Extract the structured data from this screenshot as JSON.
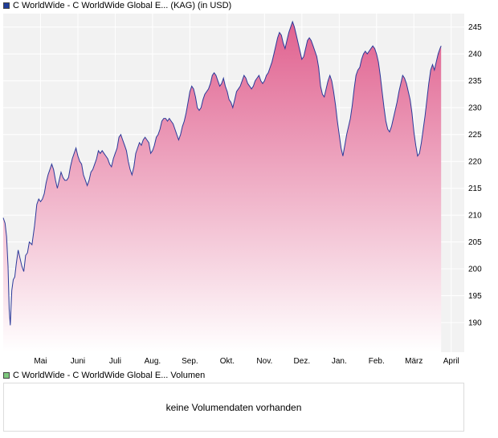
{
  "colors": {
    "price_swatch": "#1f3d99",
    "volume_swatch": "#7fc97f",
    "line": "#2b3a9a",
    "fill_top": "#e0618f",
    "fill_bottom": "#ffffff",
    "grid": "#e6e6e6",
    "plot_bg": "#f2f2f2"
  },
  "legend": {
    "price": "C WorldWide - C WorldWide Global E... (KAG) (in USD)",
    "volume": "C WorldWide - C WorldWide Global E... Volumen"
  },
  "volume_panel": {
    "message": "keine Volumendaten vorhanden"
  },
  "chart_data": {
    "type": "area",
    "series": [
      {
        "name": "C WorldWide - C WorldWide Global E... (KAG) (in USD)"
      }
    ],
    "x_ticks": [
      "Mai",
      "Juni",
      "Juli",
      "Aug.",
      "Sep.",
      "Okt.",
      "Nov.",
      "Dez.",
      "Jan.",
      "Feb.",
      "März",
      "April"
    ],
    "y_ticks": [
      190,
      195,
      200,
      205,
      210,
      215,
      220,
      225,
      230,
      235,
      240,
      245
    ],
    "ylim": [
      184.5,
      247.5
    ],
    "y_axis_side": "right",
    "grid": true,
    "x_range": [
      0,
      12.35
    ],
    "points": [
      [
        0.0,
        209.5
      ],
      [
        0.05,
        208.5
      ],
      [
        0.09,
        206.0
      ],
      [
        0.13,
        200.5
      ],
      [
        0.16,
        192.5
      ],
      [
        0.19,
        189.5
      ],
      [
        0.23,
        196.0
      ],
      [
        0.27,
        198.0
      ],
      [
        0.31,
        198.5
      ],
      [
        0.35,
        201.0
      ],
      [
        0.4,
        203.5
      ],
      [
        0.45,
        202.0
      ],
      [
        0.5,
        200.5
      ],
      [
        0.55,
        199.5
      ],
      [
        0.6,
        202.5
      ],
      [
        0.65,
        203.0
      ],
      [
        0.7,
        205.0
      ],
      [
        0.77,
        204.5
      ],
      [
        0.84,
        208.0
      ],
      [
        0.9,
        212.0
      ],
      [
        0.95,
        213.0
      ],
      [
        1.0,
        212.5
      ],
      [
        1.05,
        213.0
      ],
      [
        1.1,
        214.0
      ],
      [
        1.15,
        216.0
      ],
      [
        1.2,
        217.5
      ],
      [
        1.25,
        218.5
      ],
      [
        1.3,
        219.5
      ],
      [
        1.35,
        218.5
      ],
      [
        1.4,
        216.5
      ],
      [
        1.45,
        215.0
      ],
      [
        1.5,
        216.5
      ],
      [
        1.55,
        218.0
      ],
      [
        1.6,
        217.0
      ],
      [
        1.65,
        216.5
      ],
      [
        1.7,
        216.5
      ],
      [
        1.75,
        217.0
      ],
      [
        1.8,
        219.0
      ],
      [
        1.85,
        220.5
      ],
      [
        1.9,
        221.5
      ],
      [
        1.95,
        222.5
      ],
      [
        2.0,
        221.0
      ],
      [
        2.05,
        220.0
      ],
      [
        2.1,
        219.5
      ],
      [
        2.15,
        217.5
      ],
      [
        2.2,
        216.5
      ],
      [
        2.25,
        215.5
      ],
      [
        2.3,
        216.5
      ],
      [
        2.35,
        218.0
      ],
      [
        2.4,
        218.5
      ],
      [
        2.45,
        219.5
      ],
      [
        2.5,
        220.5
      ],
      [
        2.55,
        222.0
      ],
      [
        2.6,
        221.5
      ],
      [
        2.65,
        222.0
      ],
      [
        2.7,
        221.5
      ],
      [
        2.75,
        221.0
      ],
      [
        2.8,
        220.5
      ],
      [
        2.85,
        219.5
      ],
      [
        2.9,
        219.0
      ],
      [
        2.95,
        220.5
      ],
      [
        3.0,
        221.5
      ],
      [
        3.05,
        222.5
      ],
      [
        3.1,
        224.5
      ],
      [
        3.15,
        225.0
      ],
      [
        3.2,
        224.0
      ],
      [
        3.25,
        223.0
      ],
      [
        3.3,
        222.0
      ],
      [
        3.35,
        220.0
      ],
      [
        3.4,
        218.5
      ],
      [
        3.45,
        217.5
      ],
      [
        3.5,
        219.0
      ],
      [
        3.55,
        221.5
      ],
      [
        3.6,
        222.5
      ],
      [
        3.65,
        223.5
      ],
      [
        3.7,
        223.0
      ],
      [
        3.75,
        224.0
      ],
      [
        3.8,
        224.5
      ],
      [
        3.85,
        224.0
      ],
      [
        3.9,
        223.5
      ],
      [
        3.95,
        221.5
      ],
      [
        4.0,
        222.0
      ],
      [
        4.05,
        223.0
      ],
      [
        4.1,
        224.5
      ],
      [
        4.15,
        225.0
      ],
      [
        4.2,
        226.0
      ],
      [
        4.25,
        227.5
      ],
      [
        4.3,
        228.0
      ],
      [
        4.35,
        228.0
      ],
      [
        4.4,
        227.5
      ],
      [
        4.45,
        228.0
      ],
      [
        4.5,
        227.5
      ],
      [
        4.55,
        227.0
      ],
      [
        4.6,
        226.0
      ],
      [
        4.65,
        225.0
      ],
      [
        4.7,
        224.0
      ],
      [
        4.75,
        225.0
      ],
      [
        4.8,
        226.5
      ],
      [
        4.85,
        227.5
      ],
      [
        4.9,
        229.0
      ],
      [
        4.95,
        231.0
      ],
      [
        5.0,
        233.0
      ],
      [
        5.05,
        234.0
      ],
      [
        5.1,
        233.5
      ],
      [
        5.15,
        232.0
      ],
      [
        5.2,
        230.0
      ],
      [
        5.25,
        229.5
      ],
      [
        5.3,
        230.0
      ],
      [
        5.35,
        231.5
      ],
      [
        5.4,
        232.5
      ],
      [
        5.45,
        233.0
      ],
      [
        5.5,
        233.5
      ],
      [
        5.55,
        234.5
      ],
      [
        5.6,
        236.0
      ],
      [
        5.65,
        236.5
      ],
      [
        5.7,
        236.0
      ],
      [
        5.75,
        235.0
      ],
      [
        5.8,
        234.0
      ],
      [
        5.85,
        234.5
      ],
      [
        5.9,
        235.5
      ],
      [
        5.95,
        234.0
      ],
      [
        6.0,
        233.0
      ],
      [
        6.05,
        231.5
      ],
      [
        6.1,
        231.0
      ],
      [
        6.15,
        230.0
      ],
      [
        6.2,
        231.5
      ],
      [
        6.25,
        233.0
      ],
      [
        6.3,
        233.5
      ],
      [
        6.35,
        234.0
      ],
      [
        6.4,
        235.0
      ],
      [
        6.45,
        236.0
      ],
      [
        6.5,
        235.5
      ],
      [
        6.55,
        234.5
      ],
      [
        6.6,
        234.0
      ],
      [
        6.65,
        233.5
      ],
      [
        6.7,
        234.0
      ],
      [
        6.75,
        235.0
      ],
      [
        6.8,
        235.5
      ],
      [
        6.85,
        236.0
      ],
      [
        6.9,
        235.0
      ],
      [
        6.95,
        234.5
      ],
      [
        7.0,
        235.0
      ],
      [
        7.05,
        236.0
      ],
      [
        7.1,
        236.5
      ],
      [
        7.15,
        237.5
      ],
      [
        7.2,
        238.5
      ],
      [
        7.25,
        240.0
      ],
      [
        7.3,
        241.5
      ],
      [
        7.35,
        243.0
      ],
      [
        7.4,
        244.0
      ],
      [
        7.45,
        243.5
      ],
      [
        7.5,
        242.0
      ],
      [
        7.55,
        241.0
      ],
      [
        7.6,
        242.5
      ],
      [
        7.65,
        244.0
      ],
      [
        7.7,
        245.0
      ],
      [
        7.75,
        246.0
      ],
      [
        7.8,
        245.0
      ],
      [
        7.85,
        243.5
      ],
      [
        7.9,
        242.0
      ],
      [
        7.95,
        240.5
      ],
      [
        8.0,
        239.0
      ],
      [
        8.05,
        239.5
      ],
      [
        8.1,
        241.0
      ],
      [
        8.15,
        242.5
      ],
      [
        8.2,
        243.0
      ],
      [
        8.25,
        242.5
      ],
      [
        8.3,
        241.5
      ],
      [
        8.35,
        240.5
      ],
      [
        8.4,
        239.5
      ],
      [
        8.45,
        237.5
      ],
      [
        8.5,
        234.0
      ],
      [
        8.55,
        232.5
      ],
      [
        8.6,
        232.0
      ],
      [
        8.65,
        233.5
      ],
      [
        8.7,
        235.0
      ],
      [
        8.75,
        236.0
      ],
      [
        8.8,
        235.0
      ],
      [
        8.85,
        233.0
      ],
      [
        8.9,
        230.5
      ],
      [
        8.95,
        227.5
      ],
      [
        9.0,
        225.0
      ],
      [
        9.05,
        222.5
      ],
      [
        9.1,
        221.0
      ],
      [
        9.15,
        223.0
      ],
      [
        9.2,
        225.0
      ],
      [
        9.25,
        226.5
      ],
      [
        9.3,
        228.0
      ],
      [
        9.35,
        230.5
      ],
      [
        9.4,
        233.5
      ],
      [
        9.45,
        236.0
      ],
      [
        9.5,
        237.0
      ],
      [
        9.55,
        237.5
      ],
      [
        9.6,
        239.0
      ],
      [
        9.65,
        240.0
      ],
      [
        9.7,
        240.5
      ],
      [
        9.75,
        240.0
      ],
      [
        9.8,
        240.5
      ],
      [
        9.85,
        241.0
      ],
      [
        9.9,
        241.5
      ],
      [
        9.95,
        241.0
      ],
      [
        10.0,
        240.0
      ],
      [
        10.05,
        238.5
      ],
      [
        10.1,
        236.0
      ],
      [
        10.15,
        233.0
      ],
      [
        10.2,
        230.0
      ],
      [
        10.25,
        227.5
      ],
      [
        10.3,
        226.0
      ],
      [
        10.35,
        225.5
      ],
      [
        10.4,
        226.5
      ],
      [
        10.45,
        228.0
      ],
      [
        10.5,
        229.5
      ],
      [
        10.55,
        231.0
      ],
      [
        10.6,
        233.0
      ],
      [
        10.65,
        234.5
      ],
      [
        10.7,
        236.0
      ],
      [
        10.75,
        235.5
      ],
      [
        10.8,
        234.5
      ],
      [
        10.85,
        233.0
      ],
      [
        10.9,
        231.5
      ],
      [
        10.95,
        229.0
      ],
      [
        11.0,
        225.5
      ],
      [
        11.05,
        223.0
      ],
      [
        11.1,
        221.0
      ],
      [
        11.15,
        221.5
      ],
      [
        11.2,
        223.5
      ],
      [
        11.25,
        226.0
      ],
      [
        11.3,
        228.5
      ],
      [
        11.35,
        231.5
      ],
      [
        11.4,
        234.5
      ],
      [
        11.45,
        237.0
      ],
      [
        11.5,
        238.0
      ],
      [
        11.55,
        237.0
      ],
      [
        11.6,
        238.5
      ],
      [
        11.65,
        240.0
      ],
      [
        11.7,
        241.0
      ],
      [
        11.73,
        241.5
      ]
    ]
  }
}
